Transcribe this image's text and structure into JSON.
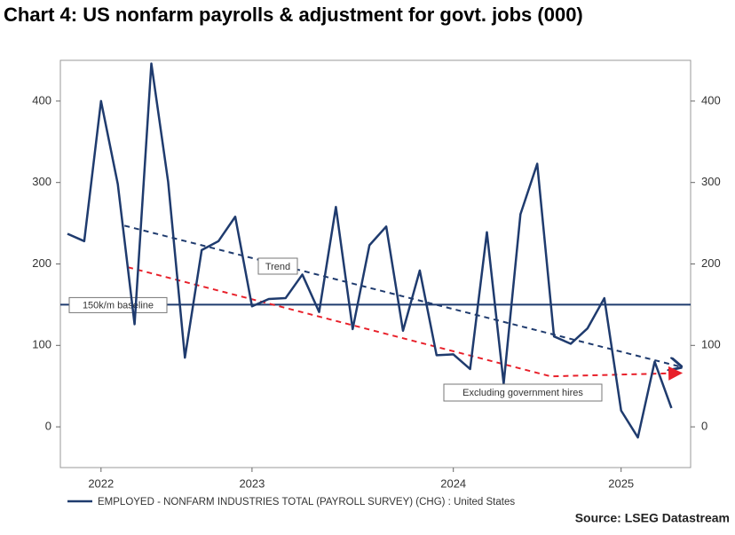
{
  "chart_data": {
    "type": "line",
    "title": "Chart 4: US nonfarm payrolls & adjustment for govt. jobs (000)",
    "categories": [
      null,
      null,
      "2022",
      null,
      null,
      null,
      null,
      null,
      null,
      null,
      null,
      "2023",
      null,
      null,
      null,
      null,
      null,
      null,
      null,
      null,
      null,
      null,
      null,
      "2024",
      null,
      null,
      null,
      null,
      null,
      null,
      null,
      null,
      null,
      "2025",
      null,
      null,
      null
    ],
    "series": [
      {
        "name": "EMPLOYED - NONFARM INDUSTRIES TOTAL (PAYROLL SURVEY) (CHG) : United States",
        "color": "#1f3b6e",
        "values": [
          237,
          228,
          400,
          298,
          126,
          446,
          301,
          85,
          217,
          228,
          258,
          148,
          157,
          158,
          187,
          141,
          270,
          120,
          223,
          246,
          118,
          192,
          88,
          89,
          71,
          239,
          53,
          261,
          323,
          111,
          102,
          121,
          158,
          20,
          -13,
          80,
          23
        ]
      }
    ],
    "ylim": [
      -50,
      450
    ],
    "yticks": [
      0,
      100,
      200,
      300,
      400
    ],
    "y2lim": [
      -50,
      450
    ],
    "y2ticks": [
      0,
      100,
      200,
      300,
      400
    ],
    "baseline": {
      "label": "150k/m baseline",
      "value": 150,
      "color": "#1f3b6e"
    },
    "trend_lines": [
      {
        "label": "Trend",
        "color": "#1f3b6e",
        "x": [
          3.4,
          36.5
        ],
        "values": [
          247,
          74
        ]
      },
      {
        "label": "Excluding government hires",
        "color": "#e8202a",
        "x": [
          3.6,
          28.8,
          36.5
        ],
        "values": [
          196,
          62,
          66
        ]
      }
    ],
    "source": "Source: LSEG Datastream"
  }
}
